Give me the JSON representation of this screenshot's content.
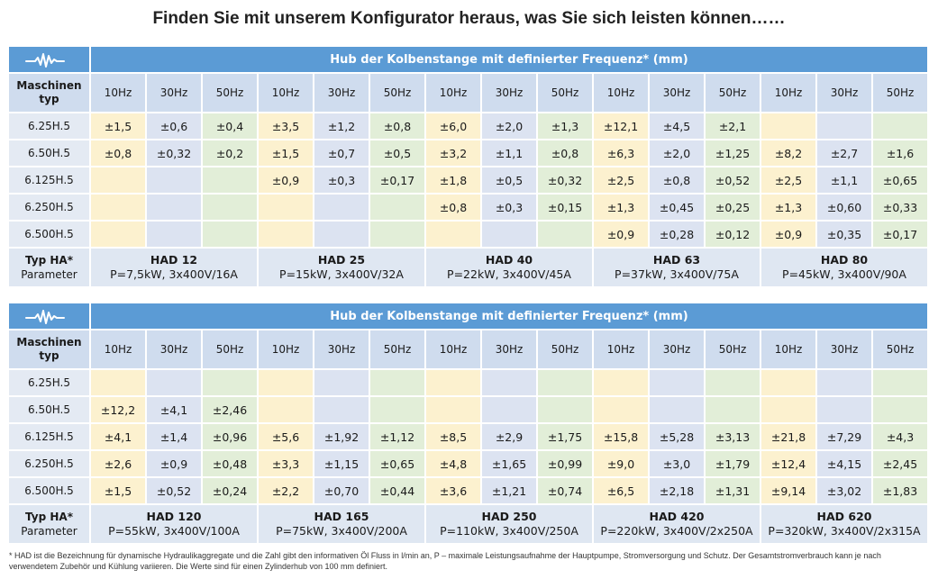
{
  "title": "Finden Sie mit unserem Konfigurator heraus, was Sie sich leisten können……",
  "table_header": "Hub der Kolbenstange mit definierter Frequenz* (mm)",
  "machine_type_label": "Maschinen typ",
  "freqs": [
    "10Hz",
    "30Hz",
    "50Hz"
  ],
  "footer_label_line1": "Typ HA*",
  "footer_label_line2": "Parameter",
  "tables": [
    {
      "rows": [
        {
          "label": "6.25H.5",
          "values": [
            "±1,5",
            "±0,6",
            "±0,4",
            "±3,5",
            "±1,2",
            "±0,8",
            "±6,0",
            "±2,0",
            "±1,3",
            "±12,1",
            "±4,5",
            "±2,1",
            "",
            "",
            ""
          ]
        },
        {
          "label": "6.50H.5",
          "values": [
            "±0,8",
            "±0,32",
            "±0,2",
            "±1,5",
            "±0,7",
            "±0,5",
            "±3,2",
            "±1,1",
            "±0,8",
            "±6,3",
            "±2,0",
            "±1,25",
            "±8,2",
            "±2,7",
            "±1,6"
          ]
        },
        {
          "label": "6.125H.5",
          "values": [
            "",
            "",
            "",
            "±0,9",
            "±0,3",
            "±0,17",
            "±1,8",
            "±0,5",
            "±0,32",
            "±2,5",
            "±0,8",
            "±0,52",
            "±2,5",
            "±1,1",
            "±0,65"
          ]
        },
        {
          "label": "6.250H.5",
          "values": [
            "",
            "",
            "",
            "",
            "",
            "",
            "±0,8",
            "±0,3",
            "±0,15",
            "±1,3",
            "±0,45",
            "±0,25",
            "±1,3",
            "±0,60",
            "±0,33"
          ]
        },
        {
          "label": "6.500H.5",
          "values": [
            "",
            "",
            "",
            "",
            "",
            "",
            "",
            "",
            "",
            "±0,9",
            "±0,28",
            "±0,12",
            "±0,9",
            "±0,35",
            "±0,17"
          ]
        }
      ],
      "models": [
        {
          "name": "HAD 12",
          "params": "P=7,5kW, 3x400V/16A"
        },
        {
          "name": "HAD 25",
          "params": "P=15kW, 3x400V/32A"
        },
        {
          "name": "HAD 40",
          "params": "P=22kW, 3x400V/45A"
        },
        {
          "name": "HAD 63",
          "params": "P=37kW, 3x400V/75A"
        },
        {
          "name": "HAD 80",
          "params": "P=45kW, 3x400V/90A"
        }
      ]
    },
    {
      "rows": [
        {
          "label": "6.25H.5",
          "values": [
            "",
            "",
            "",
            "",
            "",
            "",
            "",
            "",
            "",
            "",
            "",
            "",
            "",
            "",
            ""
          ]
        },
        {
          "label": "6.50H.5",
          "values": [
            "±12,2",
            "±4,1",
            "±2,46",
            "",
            "",
            "",
            "",
            "",
            "",
            "",
            "",
            "",
            "",
            "",
            ""
          ]
        },
        {
          "label": "6.125H.5",
          "values": [
            "±4,1",
            "±1,4",
            "±0,96",
            "±5,6",
            "±1,92",
            "±1,12",
            "±8,5",
            "±2,9",
            "±1,75",
            "±15,8",
            "±5,28",
            "±3,13",
            "±21,8",
            "±7,29",
            "±4,3"
          ]
        },
        {
          "label": "6.250H.5",
          "values": [
            "±2,6",
            "±0,9",
            "±0,48",
            "±3,3",
            "±1,15",
            "±0,65",
            "±4,8",
            "±1,65",
            "±0,99",
            "±9,0",
            "±3,0",
            "±1,79",
            "±12,4",
            "±4,15",
            "±2,45"
          ]
        },
        {
          "label": "6.500H.5",
          "values": [
            "±1,5",
            "±0,52",
            "±0,24",
            "±2,2",
            "±0,70",
            "±0,44",
            "±3,6",
            "±1,21",
            "±0,74",
            "±6,5",
            "±2,18",
            "±1,31",
            "±9,14",
            "±3,02",
            "±1,83"
          ]
        }
      ],
      "models": [
        {
          "name": "HAD 120",
          "params": "P=55kW, 3x400V/100A"
        },
        {
          "name": "HAD 165",
          "params": "P=75kW, 3x400V/200A"
        },
        {
          "name": "HAD 250",
          "params": "P=110kW, 3x400V/250A"
        },
        {
          "name": "HAD 420",
          "params": "P=220kW, 3x400V/2x250A"
        },
        {
          "name": "HAD 620",
          "params": "P=320kW, 3x400V/2x315A"
        }
      ]
    }
  ],
  "footnote": "* HAD ist die Bezeichnung für dynamische Hydraulikaggregate und die Zahl gibt den informativen Öl Fluss in l/min an, P – maximale Leistungsaufnahme der Hauptpumpe, Stromversorgung und Schutz. Der Gesamtstromverbrauch kann je nach verwendetem Zubehör und Kühlung variieren. Die Werte sind für einen Zylinderhub von 100 mm definiert.",
  "colors": {
    "header_blue": "#5b9bd5",
    "col10": "#fcf1cf",
    "col30": "#dce3f1",
    "col50": "#e2eed8"
  },
  "icons": {
    "logo": "waveform-icon"
  }
}
